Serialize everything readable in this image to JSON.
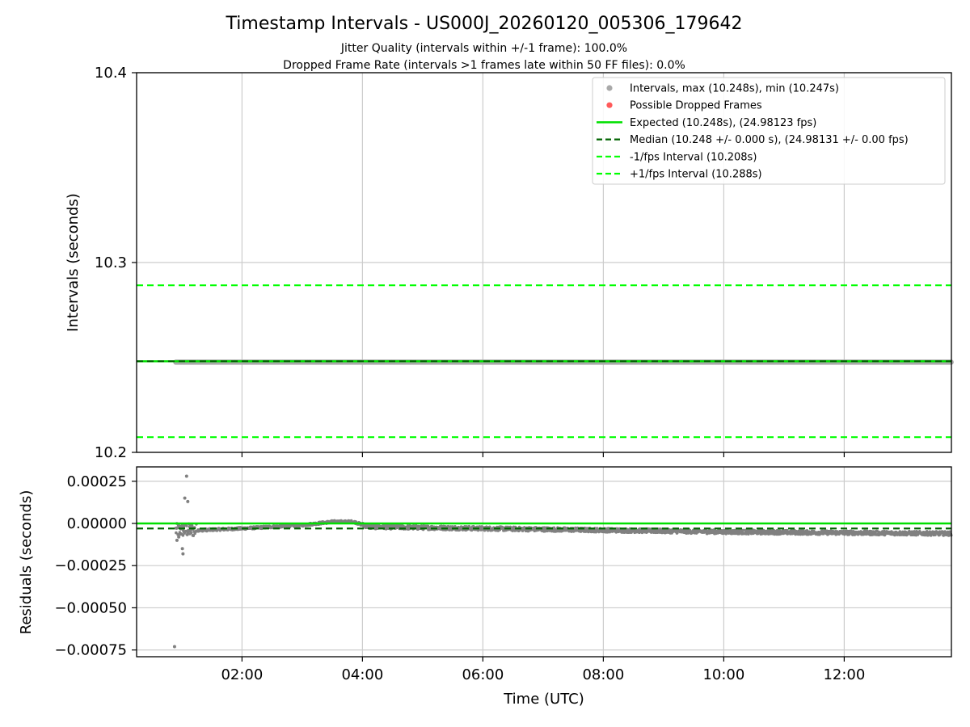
{
  "title": "Timestamp Intervals - US000J_20260120_005306_179642",
  "subtitle1": "Jitter Quality (intervals within +/-1 frame): 100.0%",
  "subtitle2": "Dropped Frame Rate (intervals >1 frames late within 50 FF files): 0.0%",
  "colors": {
    "scatter": "#808080",
    "scatter_legend": "#a9a9a9",
    "dropped": "#ff5a5a",
    "expected": "#00e000",
    "median": "#006400",
    "fps_bound": "#00ff00",
    "grid": "#cccccc"
  },
  "chart_data": [
    {
      "type": "scatter",
      "name": "intervals",
      "ylabel": "Intervals (seconds)",
      "xlim": [
        0.25,
        13.78
      ],
      "ylim": [
        10.2,
        10.4
      ],
      "y_ticks": [
        10.2,
        10.3,
        10.4
      ],
      "y_tick_labels": [
        "10.2",
        "10.3",
        "10.4"
      ],
      "x_ticks": [
        2,
        4,
        6,
        8,
        10,
        12
      ],
      "grid": true,
      "legend_position": "upper-right",
      "legend": [
        {
          "kind": "dot-gray",
          "label": "Intervals, max (10.248s), min (10.247s)"
        },
        {
          "kind": "dot-red",
          "label": "Possible Dropped Frames"
        },
        {
          "kind": "line-expected",
          "label": "Expected (10.248s), (24.98123 fps)"
        },
        {
          "kind": "dash-median",
          "label": "Median (10.248 +/- 0.000 s), (24.98131 +/- 0.00 fps)"
        },
        {
          "kind": "dash-bound",
          "label": "-1/fps Interval (10.208s)"
        },
        {
          "kind": "dash-bound",
          "label": "+1/fps Interval (10.288s)"
        }
      ],
      "series": [
        {
          "name": "Intervals",
          "x_start": 0.9,
          "x_end": 13.78,
          "value": 10.2475
        },
        {
          "name": "Expected",
          "value": 10.248
        },
        {
          "name": "Median",
          "value": 10.248
        },
        {
          "name": "-1/fps Interval",
          "value": 10.208
        },
        {
          "name": "+1/fps Interval",
          "value": 10.288
        }
      ]
    },
    {
      "type": "scatter",
      "name": "residuals",
      "xlabel": "Time (UTC)",
      "ylabel": "Residuals (seconds)",
      "xlim": [
        0.25,
        13.78
      ],
      "ylim": [
        -0.00079,
        0.000335
      ],
      "y_ticks": [
        0.00025,
        0.0,
        -0.00025,
        -0.0005,
        -0.00075
      ],
      "y_tick_labels": [
        "0.00025",
        "0.00000",
        "−0.00025",
        "−0.00050",
        "−0.00075"
      ],
      "x_ticks": [
        2,
        4,
        6,
        8,
        10,
        12
      ],
      "x_tick_labels": [
        "02:00",
        "04:00",
        "06:00",
        "08:00",
        "10:00",
        "12:00"
      ],
      "grid": true,
      "expected_residual": 0.0,
      "median_residual": -3e-05,
      "residual_profile": [
        {
          "x": 0.9,
          "y": -4e-05
        },
        {
          "x": 1.3,
          "y": -4e-05
        },
        {
          "x": 2.0,
          "y": -3e-05
        },
        {
          "x": 3.0,
          "y": -1e-05
        },
        {
          "x": 3.5,
          "y": 1e-05
        },
        {
          "x": 3.85,
          "y": 1e-05
        },
        {
          "x": 4.1,
          "y": -2e-05
        },
        {
          "x": 6.0,
          "y": -3e-05
        },
        {
          "x": 10.0,
          "y": -5e-05
        },
        {
          "x": 13.78,
          "y": -6e-05
        }
      ],
      "notable_points": [
        {
          "x": 0.88,
          "y": -0.00073
        },
        {
          "x": 1.08,
          "y": 0.00028
        },
        {
          "x": 1.05,
          "y": 0.00015
        },
        {
          "x": 1.1,
          "y": 0.00013
        },
        {
          "x": 1.02,
          "y": -0.00018
        },
        {
          "x": 1.01,
          "y": -0.00015
        },
        {
          "x": 0.92,
          "y": -0.0001
        },
        {
          "x": 0.95,
          "y": -8e-05
        }
      ]
    }
  ]
}
